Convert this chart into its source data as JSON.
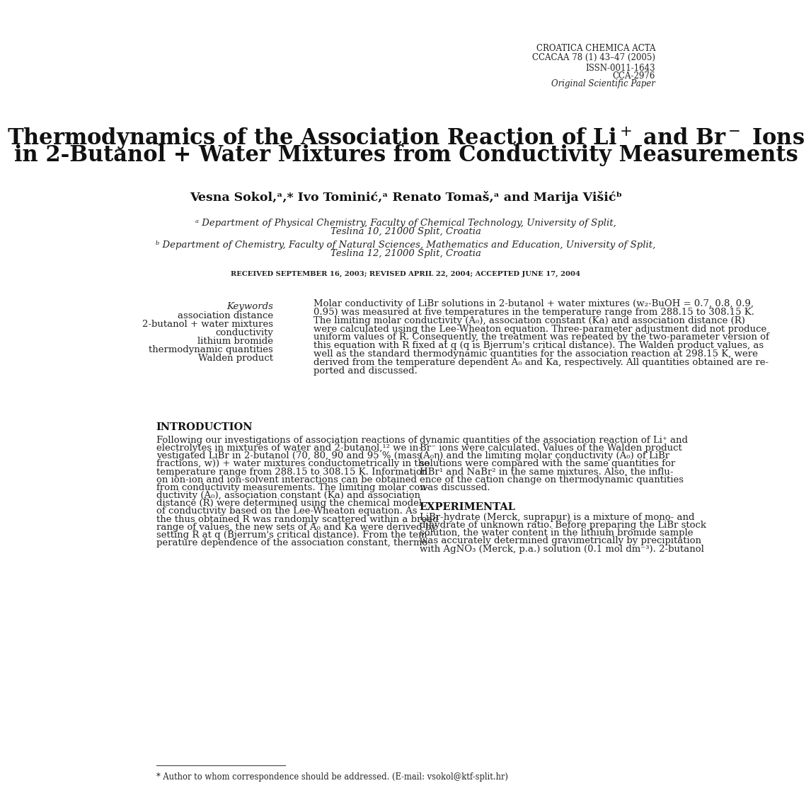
{
  "bg_color": "#ffffff",
  "header_line1": "CROATICA CHEMICA ACTA",
  "header_line2": "CCACAA 78 (1) 43–47 (2005)",
  "header_line3": "ISSN-0011-1643",
  "header_line4": "CCA-2976",
  "header_line5": "Original Scientific Paper",
  "title_line1": "Thermodynamics of the Association Reaction of Li$^+$ and Br$^-$ Ions",
  "title_line2": "in 2-Butanol + Water Mixtures from Conductivity Measurements",
  "authors_line": "Vesna Sokol,ᵃ,* Ivo Tominić,ᵃ Renato Tomaš,ᵃ and Marija Višićᵇ",
  "affil_a1": "ᵃ Department of Physical Chemistry, Faculty of Chemical Technology, University of Split,",
  "affil_a2": "Teslina 10, 21000 Split, Croatia",
  "affil_b1": "ᵇ Department of Chemistry, Faculty of Natural Sciences, Mathematics and Education, University of Split,",
  "affil_b2": "Teslina 12, 21000 Split, Croatia",
  "received": "RECEIVED SEPTEMBER 16, 2003; REVISED APRIL 22, 2004; ACCEPTED JUNE 17, 2004",
  "kw_label": "Keywords",
  "keywords": [
    "association distance",
    "2-butanol + water mixtures",
    "conductivity",
    "lithium bromide",
    "thermodynamic quantities",
    "Walden product"
  ],
  "abstract_lines": [
    "Molar conductivity of LiBr solutions in 2-butanol + water mixtures (w₂-BuOH = 0.7, 0.8, 0.9,",
    "0.95) was measured at five temperatures in the temperature range from 288.15 to 308.15 K.",
    "The limiting molar conductivity (A₀), association constant (Ka) and association distance (R)",
    "were calculated using the Lee-Wheaton equation. Three-parameter adjustment did not produce",
    "uniform values of R. Consequently, the treatment was repeated by the two-parameter version of",
    "this equation with R fixed at q (q is Bjerrum's critical distance). The Walden product values, as",
    "well as the standard thermodynamic quantities for the association reaction at 298.15 K, were",
    "derived from the temperature dependent A₀ and Ka, respectively. All quantities obtained are re-",
    "ported and discussed."
  ],
  "intro_heading": "INTRODUCTION",
  "intro_col1": [
    "Following our investigations of association reactions of",
    "electrolytes in mixtures of water and 2-butanol,¹² we in-",
    "vestigated LiBr in 2-butanol (70, 80, 90 and 95 % (mass",
    "fractions, w)) + water mixtures conductometrically in the",
    "temperature range from 288.15 to 308.15 K. Information",
    "on ion-ion and ion-solvent interactions can be obtained",
    "from conductivity measurements. The limiting molar con-",
    "ductivity (A₀), association constant (Ka) and association",
    "distance (R) were determined using the chemical model",
    "of conductivity based on the Lee-Wheaton equation. As",
    "the thus obtained R was randomly scattered within a broad",
    "range of values, the new sets of A₀ and Ka were derived by",
    "setting R at q (Bjerrum's critical distance). From the tem-",
    "perature dependence of the association constant, thermo-"
  ],
  "intro_col2": [
    "dynamic quantities of the association reaction of Li⁺ and",
    "Br⁻ ions were calculated. Values of the Walden product",
    "(A₀η) and the limiting molar conductivity (A₀) of LiBr",
    "solutions were compared with the same quantities for",
    "HBr¹ and NaBr² in the same mixtures. Also, the influ-",
    "ence of the cation change on thermodynamic quantities",
    "was discussed."
  ],
  "exp_heading": "EXPERIMENTAL",
  "exp_col2": [
    "LiBr-hydrate (Merck, suprapur) is a mixture of mono- and",
    "dihydrate of unknown ratio. Before preparing the LiBr stock",
    "solution, the water content in the lithium bromide sample",
    "was accurately determined gravimetrically by precipitation",
    "with AgNO₃ (Merck, p.a.) solution (0.1 mol dm⁻³). 2-butanol"
  ],
  "footnote": "* Author to whom correspondence should be addressed. (E-mail: vsokol@ktf-split.hr)"
}
